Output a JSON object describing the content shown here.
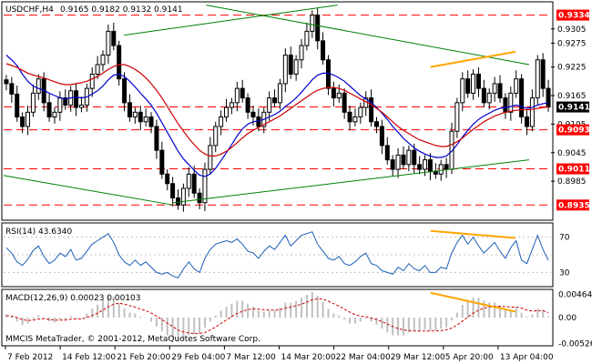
{
  "chart_data": [
    {
      "type": "candlestick",
      "title": "USDCHF,H4",
      "ohlc_label": "0.9165 0.9182 0.9132 0.9141",
      "ylim": [
        0.8905,
        0.936
      ],
      "y_ticks": [
        0.9305,
        0.9275,
        0.9225,
        0.9165,
        0.9105,
        0.9045,
        0.8985
      ],
      "price_levels": [
        {
          "value": 0.9334,
          "label": "0.9334",
          "color": "#ff0000"
        },
        {
          "value": 0.9141,
          "label": "0.9141",
          "color": "#ff0000"
        },
        {
          "value": 0.9093,
          "label": "0.9093",
          "color": "#ff0000"
        },
        {
          "value": 0.9011,
          "label": "0.9011",
          "color": "#ff0000"
        },
        {
          "value": 0.8935,
          "label": "0.8935",
          "color": "#ff0000"
        }
      ],
      "price_series": [
        0.919,
        0.9168,
        0.912,
        0.91,
        0.913,
        0.917,
        0.92,
        0.915,
        0.912,
        0.913,
        0.916,
        0.9145,
        0.9175,
        0.914,
        0.9145,
        0.918,
        0.921,
        0.923,
        0.925,
        0.93,
        0.927,
        0.92,
        0.915,
        0.912,
        0.913,
        0.911,
        0.912,
        0.91,
        0.905,
        0.9,
        0.898,
        0.895,
        0.8935,
        0.897,
        0.9,
        0.896,
        0.894,
        0.901,
        0.906,
        0.91,
        0.912,
        0.914,
        0.915,
        0.918,
        0.916,
        0.913,
        0.912,
        0.91,
        0.913,
        0.916,
        0.915,
        0.919,
        0.925,
        0.921,
        0.924,
        0.927,
        0.93,
        0.9334,
        0.928,
        0.924,
        0.918,
        0.916,
        0.917,
        0.913,
        0.911,
        0.912,
        0.914,
        0.916,
        0.911,
        0.91,
        0.906,
        0.903,
        0.901,
        0.904,
        0.902,
        0.905,
        0.902,
        0.901,
        0.903,
        0.9005,
        0.9,
        0.902,
        0.901,
        0.909,
        0.915,
        0.92,
        0.917,
        0.921,
        0.918,
        0.915,
        0.917,
        0.919,
        0.916,
        0.913,
        0.917,
        0.92,
        0.912,
        0.91,
        0.916,
        0.924,
        0.918,
        0.9141
      ],
      "moving_averages": [
        {
          "name": "MA fast",
          "color": "#0000cc",
          "values": [
            0.925,
            0.924,
            0.9228,
            0.921,
            0.9195,
            0.9185,
            0.918,
            0.9176,
            0.917,
            0.9165,
            0.916,
            0.9158,
            0.916,
            0.9162,
            0.916,
            0.9162,
            0.9168,
            0.9175,
            0.9185,
            0.9198,
            0.9208,
            0.921,
            0.9205,
            0.9195,
            0.9183,
            0.917,
            0.9158,
            0.9145,
            0.9128,
            0.9108,
            0.9088,
            0.9068,
            0.9048,
            0.9032,
            0.902,
            0.9008,
            0.8998,
            0.8995,
            0.9,
            0.9012,
            0.9028,
            0.9045,
            0.9062,
            0.908,
            0.9095,
            0.9105,
            0.911,
            0.9112,
            0.9115,
            0.912,
            0.9125,
            0.9132,
            0.9142,
            0.915,
            0.916,
            0.9172,
            0.9185,
            0.9198,
            0.9208,
            0.9212,
            0.9212,
            0.9208,
            0.9202,
            0.9195,
            0.9185,
            0.9175,
            0.9165,
            0.9158,
            0.915,
            0.914,
            0.9128,
            0.9115,
            0.91,
            0.9088,
            0.9075,
            0.9065,
            0.9055,
            0.9048,
            0.9042,
            0.9038,
            0.9035,
            0.9035,
            0.9038,
            0.9048,
            0.9062,
            0.9078,
            0.9092,
            0.9105,
            0.9115,
            0.9122,
            0.9128,
            0.9134,
            0.9138,
            0.914,
            0.9142,
            0.9145,
            0.9142,
            0.9138,
            0.914,
            0.9145,
            0.9148,
            0.915
          ]
        },
        {
          "name": "MA slow",
          "color": "#cc0000",
          "values": [
            0.9232,
            0.9228,
            0.9224,
            0.9218,
            0.9212,
            0.9208,
            0.9205,
            0.9202,
            0.9198,
            0.9194,
            0.919,
            0.9188,
            0.9188,
            0.919,
            0.9192,
            0.9195,
            0.92,
            0.9205,
            0.9212,
            0.922,
            0.9226,
            0.923,
            0.923,
            0.9226,
            0.922,
            0.9212,
            0.9202,
            0.919,
            0.9176,
            0.916,
            0.9142,
            0.9124,
            0.9106,
            0.909,
            0.9075,
            0.9062,
            0.905,
            0.9042,
            0.9038,
            0.9038,
            0.9042,
            0.9048,
            0.9056,
            0.9066,
            0.9076,
            0.9085,
            0.9092,
            0.9098,
            0.9104,
            0.911,
            0.9116,
            0.9122,
            0.913,
            0.9138,
            0.9146,
            0.9154,
            0.9162,
            0.917,
            0.9176,
            0.918,
            0.9182,
            0.9182,
            0.918,
            0.9176,
            0.917,
            0.9164,
            0.9158,
            0.9152,
            0.9146,
            0.9138,
            0.913,
            0.912,
            0.911,
            0.91,
            0.9092,
            0.9085,
            0.9078,
            0.9072,
            0.9068,
            0.9064,
            0.906,
            0.9058,
            0.9058,
            0.9062,
            0.9068,
            0.9076,
            0.9085,
            0.9094,
            0.9102,
            0.911,
            0.9116,
            0.9122,
            0.9126,
            0.913,
            0.9132,
            0.9134,
            0.9135,
            0.9135,
            0.9136,
            0.9138,
            0.914,
            0.9141
          ]
        }
      ],
      "trend_lines": [
        {
          "color": "#008000",
          "x1": 0.22,
          "y1": 0.9292,
          "x2": 0.61,
          "y2": 0.9355
        },
        {
          "color": "#008000",
          "x1": 0.37,
          "y1": 0.9355,
          "x2": 0.96,
          "y2": 0.923
        },
        {
          "color": "#008000",
          "x1": 0.0,
          "y1": 0.8997,
          "x2": 0.31,
          "y2": 0.8935
        },
        {
          "color": "#008000",
          "x1": 0.31,
          "y1": 0.894,
          "x2": 0.96,
          "y2": 0.903
        },
        {
          "color": "#ffa500",
          "x1": 0.78,
          "y1": 0.9225,
          "x2": 0.935,
          "y2": 0.9257
        }
      ]
    },
    {
      "type": "line",
      "title": "RSI(14) 43.6340",
      "ylim": [
        15,
        85
      ],
      "y_ticks": [
        70,
        50,
        30
      ],
      "levels": [
        70,
        50,
        30
      ],
      "values": [
        58,
        52,
        42,
        38,
        45,
        55,
        60,
        48,
        40,
        44,
        52,
        48,
        56,
        44,
        46,
        54,
        62,
        66,
        70,
        74,
        64,
        50,
        42,
        38,
        44,
        38,
        42,
        36,
        30,
        28,
        30,
        26,
        24,
        34,
        42,
        34,
        30,
        46,
        56,
        62,
        64,
        66,
        64,
        68,
        62,
        54,
        52,
        46,
        54,
        60,
        56,
        64,
        72,
        60,
        66,
        72,
        74,
        76,
        62,
        54,
        46,
        44,
        48,
        40,
        38,
        42,
        48,
        52,
        40,
        38,
        32,
        30,
        28,
        36,
        32,
        40,
        34,
        32,
        38,
        30,
        30,
        36,
        34,
        52,
        64,
        72,
        62,
        70,
        60,
        52,
        58,
        64,
        54,
        46,
        58,
        66,
        44,
        40,
        56,
        72,
        56,
        43.634
      ],
      "color": "#1c5fb7",
      "divergence_line": {
        "color": "#ffa500",
        "x1": 0.78,
        "y1": 77,
        "x2": 0.935,
        "y2": 69
      }
    },
    {
      "type": "bar",
      "title": "MACD(12,26,9) 0.00023 0.00103",
      "ylim": [
        -0.0055,
        0.0055
      ],
      "y_ticks": [
        0.00464,
        0.0,
        -0.00526
      ],
      "y_tick_labels": [
        "0.00464",
        "0.00",
        "-0.00526"
      ],
      "values": [
        0.0006,
        0.0002,
        -0.0008,
        -0.0015,
        -0.0012,
        -0.0003,
        0.0005,
        0.0,
        -0.0008,
        -0.001,
        -0.0004,
        -0.0006,
        0.0003,
        -0.0002,
        -0.0001,
        0.0008,
        0.0018,
        0.0026,
        0.0035,
        0.0045,
        0.0042,
        0.003,
        0.0018,
        0.001,
        0.0008,
        0.0002,
        0.0,
        -0.0008,
        -0.0018,
        -0.0028,
        -0.0036,
        -0.0042,
        -0.0048,
        -0.0044,
        -0.0036,
        -0.0034,
        -0.0032,
        -0.002,
        -0.0008,
        0.0004,
        0.0014,
        0.0022,
        0.0028,
        0.0034,
        0.0034,
        0.0028,
        0.0022,
        0.0014,
        0.0012,
        0.0014,
        0.0014,
        0.002,
        0.003,
        0.003,
        0.0034,
        0.004,
        0.0046,
        0.0052,
        0.0044,
        0.0032,
        0.0018,
        0.0008,
        0.0004,
        -0.0004,
        -0.0012,
        -0.0012,
        -0.0008,
        -0.0002,
        -0.0008,
        -0.0014,
        -0.0022,
        -0.003,
        -0.0036,
        -0.0036,
        -0.0036,
        -0.003,
        -0.0028,
        -0.0028,
        -0.0024,
        -0.0026,
        -0.0026,
        -0.0022,
        -0.002,
        -0.0006,
        0.001,
        0.0026,
        0.0032,
        0.004,
        0.004,
        0.0034,
        0.003,
        0.003,
        0.0024,
        0.0016,
        0.0016,
        0.002,
        0.001,
        0.0002,
        0.0006,
        0.0018,
        0.0016,
        0.0002
      ],
      "signal": [
        0.0004,
        0.0003,
        0.0,
        -0.0004,
        -0.0006,
        -0.0005,
        -0.0003,
        -0.0002,
        -0.0004,
        -0.0005,
        -0.0005,
        -0.0005,
        -0.0003,
        -0.0003,
        -0.0003,
        0.0,
        0.0004,
        0.0009,
        0.0015,
        0.0022,
        0.0027,
        0.0029,
        0.0027,
        0.0024,
        0.0021,
        0.0017,
        0.0014,
        0.0009,
        0.0003,
        -0.0004,
        -0.0011,
        -0.0018,
        -0.0025,
        -0.0029,
        -0.0031,
        -0.0032,
        -0.0032,
        -0.003,
        -0.0025,
        -0.0019,
        -0.0012,
        -0.0005,
        0.0002,
        0.0008,
        0.0013,
        0.0016,
        0.0018,
        0.0017,
        0.0016,
        0.0015,
        0.0015,
        0.0016,
        0.0019,
        0.0021,
        0.0024,
        0.0027,
        0.0031,
        0.0036,
        0.0038,
        0.0037,
        0.0033,
        0.0028,
        0.0023,
        0.0017,
        0.0011,
        0.0006,
        0.0003,
        0.0002,
        -0.0001,
        -0.0004,
        -0.0008,
        -0.0013,
        -0.0018,
        -0.0022,
        -0.0025,
        -0.0026,
        -0.0027,
        -0.0027,
        -0.0027,
        -0.0027,
        -0.0027,
        -0.0026,
        -0.0025,
        -0.0021,
        -0.0015,
        -0.0007,
        0.0001,
        0.0009,
        0.0015,
        0.0019,
        0.0021,
        0.0023,
        0.0023,
        0.0022,
        0.0021,
        0.0021,
        0.0019,
        0.0015,
        0.0013,
        0.0014,
        0.0014,
        0.001
      ],
      "color": "#c0c0c0",
      "signal_color": "#cc0000",
      "divergence_line": {
        "color": "#ffa500",
        "x1": 0.78,
        "y1": 0.005,
        "x2": 0.935,
        "y2": 0.0012
      }
    }
  ],
  "x_axis": {
    "labels": [
      "7 Feb 2012",
      "14 Feb 12:00",
      "21 Feb 20:00",
      "29 Feb 04:00",
      "7 Mar 12:00",
      "14 Mar 20:00",
      "22 Mar 04:00",
      "29 Mar 12:00",
      "5 Apr 20:00",
      "13 Apr 04:00"
    ]
  },
  "footer": "MMCIS MetaTrader, © 2001-2012, MetaQuotes Software Corp.",
  "colors": {
    "bullish": "#000000",
    "level": "#ff0000",
    "level_label_bg": "#ff0000",
    "level_label_text": "#ffffff",
    "current_label_bg": "#000000",
    "grid": "#c0c0c0"
  }
}
